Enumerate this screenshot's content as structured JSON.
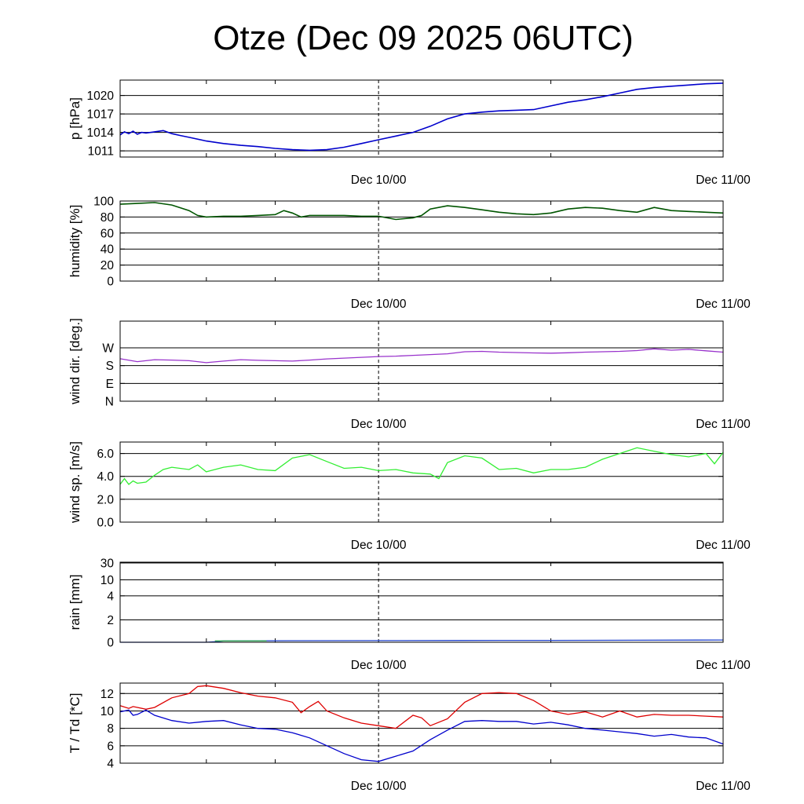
{
  "title": "Otze (Dec 09 2025 06UTC)",
  "chart_data": [
    {
      "type": "line",
      "ylabel": "p [hPa]",
      "ylim": [
        1010,
        1022.5
      ],
      "yticks": [
        1011,
        1014,
        1017,
        1020
      ],
      "ytick_labels": [
        "1011",
        "1014",
        "1017",
        "1020"
      ],
      "x_ticks": [
        "Dec 10/00",
        "Dec 11/00"
      ],
      "grid": true,
      "colors": [
        "#0000cc"
      ],
      "series": [
        {
          "x": [
            0,
            0.5,
            1,
            1.5,
            2,
            2.5,
            3,
            4,
            5,
            6,
            7,
            8,
            10,
            12,
            14,
            16,
            18,
            20,
            22,
            24,
            26,
            28,
            30,
            32,
            34,
            36,
            38,
            40,
            42,
            44,
            46,
            48,
            50,
            52,
            54,
            56,
            58,
            60,
            62,
            64,
            66,
            68,
            70
          ],
          "values": [
            1013.6,
            1014.1,
            1013.8,
            1014.2,
            1013.7,
            1014.0,
            1013.9,
            1014.1,
            1014.3,
            1013.8,
            1013.5,
            1013.2,
            1012.6,
            1012.2,
            1011.9,
            1011.7,
            1011.4,
            1011.2,
            1011.1,
            1011.2,
            1011.6,
            1012.2,
            1012.8,
            1013.4,
            1014.0,
            1015.0,
            1016.2,
            1017.0,
            1017.3,
            1017.5,
            1017.6,
            1017.7,
            1018.3,
            1018.9,
            1019.3,
            1019.8,
            1020.4,
            1021.0,
            1021.3,
            1021.5,
            1021.7,
            1021.9,
            1022.0
          ]
        }
      ]
    },
    {
      "type": "line",
      "ylabel": "humidity [%]",
      "ylim": [
        0,
        100
      ],
      "yticks": [
        0,
        20,
        40,
        60,
        80,
        100
      ],
      "ytick_labels": [
        "0",
        "20",
        "40",
        "60",
        "80",
        "100"
      ],
      "x_ticks": [
        "Dec 10/00",
        "Dec 11/00"
      ],
      "grid": true,
      "colors": [
        "#005500"
      ],
      "series": [
        {
          "x": [
            0,
            2,
            4,
            6,
            8,
            9,
            10,
            12,
            14,
            16,
            18,
            19,
            20,
            21,
            22,
            24,
            26,
            28,
            30,
            32,
            34,
            35,
            36,
            38,
            40,
            42,
            44,
            46,
            48,
            50,
            52,
            54,
            56,
            58,
            60,
            62,
            64,
            66,
            68,
            70
          ],
          "values": [
            96,
            97,
            98,
            95,
            88,
            82,
            80,
            81,
            81,
            82,
            83,
            88,
            85,
            80,
            82,
            82,
            82,
            81,
            81,
            77,
            79,
            82,
            90,
            94,
            92,
            89,
            86,
            84,
            83,
            85,
            90,
            92,
            91,
            88,
            86,
            92,
            88,
            87,
            86,
            85
          ]
        }
      ]
    },
    {
      "type": "line",
      "ylabel": "wind dir. [deg.]",
      "ylim": [
        0,
        405
      ],
      "yticks": [
        0,
        90,
        180,
        270
      ],
      "ytick_labels": [
        "N",
        "E",
        "S",
        "W"
      ],
      "x_ticks": [
        "Dec 10/00",
        "Dec 11/00"
      ],
      "grid": true,
      "colors": [
        "#9933cc"
      ],
      "series": [
        {
          "x": [
            0,
            2,
            4,
            6,
            8,
            10,
            12,
            14,
            16,
            18,
            20,
            22,
            24,
            26,
            28,
            30,
            32,
            34,
            36,
            38,
            40,
            42,
            44,
            46,
            48,
            50,
            52,
            54,
            56,
            58,
            60,
            62,
            64,
            66,
            68,
            70
          ],
          "values": [
            215,
            200,
            210,
            208,
            205,
            195,
            203,
            210,
            207,
            205,
            203,
            208,
            214,
            218,
            222,
            226,
            228,
            232,
            236,
            240,
            250,
            252,
            248,
            246,
            244,
            243,
            245,
            248,
            250,
            252,
            256,
            265,
            258,
            262,
            255,
            248
          ]
        }
      ]
    },
    {
      "type": "line",
      "ylabel": "wind sp. [m/s]",
      "ylim": [
        0,
        7
      ],
      "yticks": [
        0,
        2,
        4,
        6
      ],
      "ytick_labels": [
        "0.0",
        "2.0",
        "4.0",
        "6.0"
      ],
      "x_ticks": [
        "Dec 10/00",
        "Dec 11/00"
      ],
      "grid": true,
      "colors": [
        "#33ee33"
      ],
      "series": [
        {
          "x": [
            0,
            0.5,
            1,
            1.5,
            2,
            3,
            4,
            5,
            6,
            8,
            9,
            10,
            11,
            12,
            14,
            16,
            18,
            20,
            22,
            24,
            26,
            28,
            30,
            32,
            34,
            36,
            37,
            38,
            40,
            42,
            44,
            46,
            48,
            50,
            52,
            54,
            56,
            58,
            60,
            62,
            64,
            66,
            68,
            69,
            70
          ],
          "values": [
            3.3,
            3.8,
            3.3,
            3.6,
            3.4,
            3.5,
            4.1,
            4.6,
            4.8,
            4.6,
            5.0,
            4.4,
            4.6,
            4.8,
            5.0,
            4.6,
            4.5,
            5.6,
            5.9,
            5.3,
            4.7,
            4.8,
            4.5,
            4.6,
            4.3,
            4.2,
            3.8,
            5.2,
            5.8,
            5.6,
            4.6,
            4.7,
            4.3,
            4.6,
            4.6,
            4.8,
            5.5,
            6.0,
            6.5,
            6.2,
            5.9,
            5.7,
            6.0,
            5.1,
            6.1
          ]
        }
      ]
    },
    {
      "type": "line",
      "ylabel": "rain [mm]",
      "ylim": [
        0,
        30
      ],
      "yticks": [
        0,
        2,
        4,
        10,
        30
      ],
      "ytick_labels": [
        "0",
        "2",
        "4",
        "10",
        "30"
      ],
      "x_ticks": [
        "Dec 10/00",
        "Dec 11/00"
      ],
      "grid": true,
      "colors": [
        "#2244cc",
        "#33aa55"
      ],
      "series": [
        {
          "x": [
            0,
            10,
            11,
            12,
            20,
            30,
            40,
            50,
            60,
            70
          ],
          "values": [
            0,
            0,
            0.05,
            0.12,
            0.14,
            0.15,
            0.16,
            0.17,
            0.18,
            0.2
          ]
        },
        {
          "x": [
            11,
            17
          ],
          "values": [
            0.12,
            0.12
          ]
        }
      ]
    },
    {
      "type": "line",
      "ylabel": "T / Td [*C]",
      "ylim": [
        4,
        13.2
      ],
      "yticks": [
        4,
        6,
        8,
        10,
        12
      ],
      "ytick_labels": [
        "4",
        "6",
        "8",
        "10",
        "12"
      ],
      "x_ticks": [
        "Dec 10/00",
        "Dec 11/00"
      ],
      "grid": true,
      "colors": [
        "#dd0000",
        "#0000cc"
      ],
      "series": [
        {
          "x": [
            0,
            1,
            1.5,
            2,
            3,
            4,
            6,
            8,
            9,
            10,
            12,
            14,
            16,
            18,
            20,
            21,
            22,
            23,
            24,
            26,
            28,
            30,
            32,
            34,
            35,
            36,
            38,
            40,
            42,
            44,
            46,
            48,
            50,
            52,
            54,
            56,
            58,
            60,
            62,
            64,
            66,
            68,
            70
          ],
          "values": [
            10.6,
            10.3,
            10.5,
            10.4,
            10.2,
            10.4,
            11.5,
            12.0,
            12.8,
            12.9,
            12.6,
            12.1,
            11.7,
            11.5,
            11.0,
            9.8,
            10.5,
            11.1,
            10.0,
            9.2,
            8.6,
            8.3,
            8.0,
            9.5,
            9.2,
            8.3,
            9.1,
            11.0,
            12.0,
            12.1,
            12.0,
            11.2,
            10.0,
            9.6,
            9.9,
            9.3,
            10.0,
            9.3,
            9.6,
            9.5,
            9.5,
            9.4,
            9.3
          ]
        },
        {
          "x": [
            0,
            1,
            1.5,
            2,
            3,
            4,
            6,
            8,
            10,
            12,
            14,
            16,
            18,
            20,
            22,
            24,
            26,
            28,
            30,
            32,
            34,
            36,
            38,
            40,
            42,
            44,
            46,
            48,
            50,
            52,
            54,
            56,
            58,
            60,
            62,
            64,
            66,
            68,
            70
          ],
          "values": [
            9.9,
            10.1,
            9.5,
            9.6,
            10.1,
            9.5,
            8.9,
            8.6,
            8.8,
            8.9,
            8.4,
            8.0,
            7.9,
            7.5,
            6.9,
            6.0,
            5.1,
            4.4,
            4.2,
            4.8,
            5.4,
            6.7,
            7.8,
            8.8,
            8.9,
            8.8,
            8.8,
            8.5,
            8.7,
            8.4,
            8.0,
            7.8,
            7.6,
            7.4,
            7.1,
            7.3,
            7.0,
            6.9,
            6.2
          ]
        }
      ]
    }
  ]
}
